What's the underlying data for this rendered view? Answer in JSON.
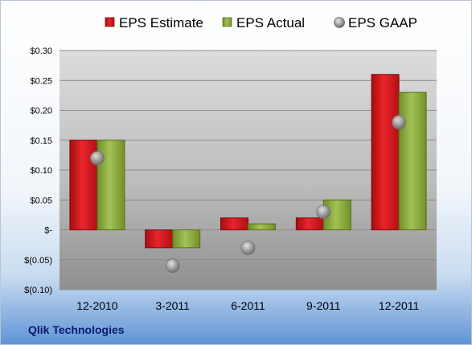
{
  "company": "Qlik Technologies",
  "colors": {
    "estimate": "#d2161c",
    "actual": "#8faf3c",
    "gaap": "#9a9a9a"
  },
  "chart_data": {
    "type": "bar",
    "categories": [
      "12-2010",
      "3-2011",
      "6-2011",
      "9-2011",
      "12-2011"
    ],
    "series": [
      {
        "name": "EPS Estimate",
        "kind": "bar",
        "values": [
          0.15,
          -0.03,
          0.02,
          0.02,
          0.26
        ]
      },
      {
        "name": "EPS Actual",
        "kind": "bar",
        "values": [
          0.15,
          -0.03,
          0.01,
          0.05,
          0.23
        ]
      },
      {
        "name": "EPS GAAP",
        "kind": "marker",
        "values": [
          0.12,
          -0.06,
          -0.03,
          0.03,
          0.18
        ]
      }
    ],
    "yticks": [
      {
        "value": 0.3,
        "label": "$0.30"
      },
      {
        "value": 0.25,
        "label": "$0.25"
      },
      {
        "value": 0.2,
        "label": "$0.20"
      },
      {
        "value": 0.15,
        "label": "$0.15"
      },
      {
        "value": 0.1,
        "label": "$0.10"
      },
      {
        "value": 0.05,
        "label": "$0.05"
      },
      {
        "value": 0.0,
        "label": "$-"
      },
      {
        "value": -0.05,
        "label": "$(0.05)"
      },
      {
        "value": -0.1,
        "label": "$(0.10)"
      }
    ],
    "ylim": [
      -0.1,
      0.3
    ],
    "grid": true,
    "legend_position": "top"
  }
}
